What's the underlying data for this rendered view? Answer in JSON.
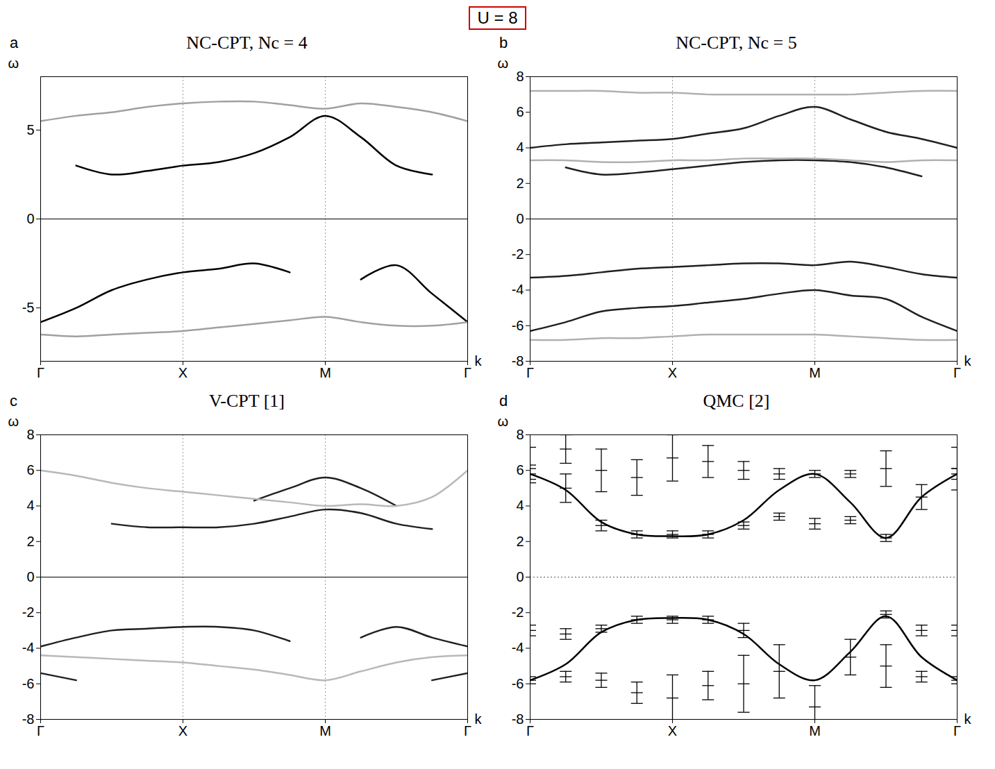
{
  "figure_title": "U = 8",
  "chart_data": [
    {
      "type": "line",
      "panel": "a",
      "title": "NC-CPT, Nc = 4",
      "xlabel": "k",
      "ylabel": "ω",
      "x": [
        0,
        0.25,
        0.5,
        0.75,
        1,
        1.25,
        1.5,
        1.75,
        2,
        2.25,
        2.5,
        2.75,
        3
      ],
      "xlim": [
        0,
        3
      ],
      "xticks": [
        {
          "value": 0,
          "label": "Γ"
        },
        {
          "value": 1,
          "label": "X"
        },
        {
          "value": 2,
          "label": "M"
        },
        {
          "value": 3,
          "label": "Γ"
        }
      ],
      "ylim": [
        -8,
        8
      ],
      "yticks": [
        -5,
        0,
        5
      ],
      "grid": true,
      "hline": {
        "value": 0,
        "line_style": "solid"
      },
      "series": [
        {
          "color": "#000000",
          "values": [
            null,
            3.0,
            2.5,
            2.7,
            3.0,
            3.2,
            3.7,
            4.6,
            5.8,
            4.6,
            3.0,
            2.5,
            null
          ]
        },
        {
          "color": "#a0a0a0",
          "values": [
            5.5,
            5.8,
            6.0,
            6.3,
            6.5,
            6.6,
            6.6,
            6.4,
            6.2,
            6.5,
            6.3,
            6.0,
            5.5
          ]
        },
        {
          "color": "#000000",
          "values": [
            -5.8,
            -5.0,
            -4.0,
            -3.4,
            -3.0,
            -2.8,
            -2.5,
            -3.0,
            null,
            -3.4,
            -2.6,
            -4.2,
            -5.8
          ]
        },
        {
          "color": "#a0a0a0",
          "values": [
            -6.5,
            -6.6,
            -6.5,
            -6.4,
            -6.3,
            -6.1,
            -5.9,
            -5.7,
            -5.5,
            -5.8,
            -6.0,
            -6.0,
            -5.8
          ]
        }
      ]
    },
    {
      "type": "line",
      "panel": "b",
      "title": "NC-CPT, Nc = 5",
      "xlabel": "k",
      "ylabel": "ω",
      "x": [
        0,
        0.25,
        0.5,
        0.75,
        1,
        1.25,
        1.5,
        1.75,
        2,
        2.25,
        2.5,
        2.75,
        3
      ],
      "xlim": [
        0,
        3
      ],
      "xticks": [
        {
          "value": 0,
          "label": "Γ"
        },
        {
          "value": 1,
          "label": "X"
        },
        {
          "value": 2,
          "label": "M"
        },
        {
          "value": 3,
          "label": "Γ"
        }
      ],
      "ylim": [
        -8,
        8
      ],
      "yticks": [
        -8,
        -6,
        -4,
        -2,
        0,
        2,
        4,
        6,
        8
      ],
      "grid": true,
      "hline": {
        "value": 0,
        "line_style": "solid"
      },
      "series": [
        {
          "color": "#202020",
          "values": [
            4.0,
            4.2,
            4.3,
            4.4,
            4.5,
            4.8,
            5.1,
            5.8,
            6.3,
            5.6,
            4.9,
            4.5,
            4.0
          ]
        },
        {
          "color": "#202020",
          "values": [
            null,
            2.9,
            2.5,
            2.6,
            2.8,
            3.0,
            3.2,
            3.3,
            3.3,
            3.2,
            2.9,
            2.4,
            null
          ]
        },
        {
          "color": "#b0b0b0",
          "values": [
            7.2,
            7.2,
            7.2,
            7.1,
            7.1,
            7.0,
            7.0,
            7.0,
            7.0,
            7.0,
            7.1,
            7.2,
            7.2
          ]
        },
        {
          "color": "#b0b0b0",
          "values": [
            3.3,
            3.3,
            3.2,
            3.2,
            3.3,
            3.3,
            3.4,
            3.4,
            3.4,
            3.3,
            3.2,
            3.3,
            3.3
          ]
        },
        {
          "color": "#202020",
          "values": [
            -3.3,
            -3.2,
            -3.0,
            -2.8,
            -2.7,
            -2.6,
            -2.5,
            -2.5,
            -2.6,
            -2.4,
            -2.7,
            -3.1,
            -3.3
          ]
        },
        {
          "color": "#202020",
          "values": [
            -6.3,
            -5.8,
            -5.2,
            -5.0,
            -4.9,
            -4.7,
            -4.5,
            -4.2,
            -4.0,
            -4.3,
            -4.5,
            -5.5,
            -6.3
          ]
        },
        {
          "color": "#b0b0b0",
          "values": [
            -6.8,
            -6.8,
            -6.7,
            -6.7,
            -6.6,
            -6.5,
            -6.5,
            -6.5,
            -6.5,
            -6.6,
            -6.7,
            -6.8,
            -6.8
          ]
        }
      ]
    },
    {
      "type": "line",
      "panel": "c",
      "title": "V-CPT [1]",
      "xlabel": "k",
      "ylabel": "ω",
      "x": [
        0,
        0.25,
        0.5,
        0.75,
        1,
        1.25,
        1.5,
        1.75,
        2,
        2.25,
        2.5,
        2.75,
        3
      ],
      "xlim": [
        0,
        3
      ],
      "xticks": [
        {
          "value": 0,
          "label": "Γ"
        },
        {
          "value": 1,
          "label": "X"
        },
        {
          "value": 2,
          "label": "M"
        },
        {
          "value": 3,
          "label": "Γ"
        }
      ],
      "ylim": [
        -8,
        8
      ],
      "yticks": [
        -8,
        -6,
        -4,
        -2,
        0,
        2,
        4,
        6,
        8
      ],
      "grid": true,
      "hline": {
        "value": 0,
        "line_style": "solid"
      },
      "series": [
        {
          "color": "#202020",
          "values": [
            null,
            null,
            3.0,
            2.8,
            2.8,
            2.8,
            3.0,
            3.4,
            3.8,
            3.6,
            3.0,
            2.7,
            null
          ]
        },
        {
          "color": "#202020",
          "values": [
            null,
            null,
            null,
            null,
            null,
            null,
            4.3,
            5.0,
            5.6,
            5.0,
            4.0,
            null,
            null
          ]
        },
        {
          "color": "#b8b8b8",
          "values": [
            6.0,
            5.7,
            5.3,
            5.0,
            4.8,
            4.6,
            4.4,
            4.2,
            4.0,
            4.1,
            4.0,
            4.5,
            6.0
          ]
        },
        {
          "color": "#202020",
          "values": [
            -3.9,
            -3.4,
            -3.0,
            -2.9,
            -2.8,
            -2.8,
            -3.0,
            -3.6,
            null,
            -3.4,
            -2.8,
            -3.4,
            -3.9
          ]
        },
        {
          "color": "#202020",
          "values": [
            -5.4,
            -5.8,
            null,
            null,
            null,
            null,
            null,
            null,
            null,
            null,
            null,
            -5.8,
            -5.4
          ]
        },
        {
          "color": "#b8b8b8",
          "values": [
            -4.4,
            -4.5,
            -4.6,
            -4.7,
            -4.8,
            -5.0,
            -5.2,
            -5.5,
            -5.8,
            -5.3,
            -4.8,
            -4.5,
            -4.4
          ]
        }
      ]
    },
    {
      "type": "errorbar",
      "panel": "d",
      "title": "QMC [2]",
      "xlabel": "k",
      "ylabel": "ω",
      "x": [
        0,
        0.25,
        0.5,
        0.75,
        1,
        1.25,
        1.5,
        1.75,
        2,
        2.25,
        2.5,
        2.75,
        3
      ],
      "xlim": [
        0,
        3
      ],
      "xticks": [
        {
          "value": 0,
          "label": "Γ"
        },
        {
          "value": 1,
          "label": "X"
        },
        {
          "value": 2,
          "label": "M"
        },
        {
          "value": 3,
          "label": "Γ"
        }
      ],
      "ylim": [
        -8,
        8
      ],
      "yticks": [
        -8,
        -6,
        -4,
        -2,
        0,
        2,
        4,
        6,
        8
      ],
      "grid": false,
      "hline": {
        "value": 0,
        "line_style": "dotted"
      },
      "series": [
        {
          "type": "line",
          "color": "#000000",
          "values": [
            5.8,
            4.9,
            3.1,
            2.4,
            2.3,
            2.4,
            3.2,
            4.9,
            5.8,
            4.2,
            2.2,
            4.5,
            5.8
          ]
        },
        {
          "type": "line",
          "color": "#000000",
          "values": [
            -5.8,
            -4.9,
            -3.1,
            -2.4,
            -2.3,
            -2.4,
            -3.2,
            -4.9,
            -5.8,
            -4.2,
            -2.2,
            -4.5,
            -5.8
          ]
        },
        {
          "type": "errorbar",
          "marker": "dash",
          "color": "#000000",
          "values": [
            5.8,
            5.0,
            2.9,
            2.4,
            2.4,
            2.4,
            2.9,
            3.4,
            5.8,
            5.8,
            2.2,
            4.5,
            5.8
          ],
          "errors": [
            0.3,
            0.8,
            0.3,
            0.2,
            0.2,
            0.2,
            0.2,
            0.2,
            0.2,
            0.2,
            0.2,
            0.7,
            0.3
          ]
        },
        {
          "type": "errorbar",
          "marker": "dash",
          "color": "#000000",
          "values": [
            6.3,
            7.2,
            6.0,
            5.6,
            6.7,
            6.5,
            6.0,
            5.8,
            3.0,
            3.2,
            6.1,
            null,
            6.1
          ],
          "errors": [
            1.0,
            0.8,
            1.2,
            1.0,
            1.3,
            0.9,
            0.5,
            0.3,
            0.3,
            0.2,
            1.0,
            null,
            1.2
          ]
        },
        {
          "type": "errorbar",
          "marker": "dash",
          "color": "#000000",
          "values": [
            -5.8,
            -5.6,
            -2.9,
            -2.4,
            -2.4,
            -2.4,
            -3.0,
            -5.3,
            -7.3,
            -4.5,
            -2.1,
            -5.6,
            -5.8
          ],
          "errors": [
            0.2,
            0.3,
            0.2,
            0.2,
            0.2,
            0.2,
            0.4,
            1.5,
            1.2,
            1.0,
            0.2,
            0.3,
            0.2
          ]
        },
        {
          "type": "errorbar",
          "marker": "dash",
          "color": "#000000",
          "values": [
            -3.0,
            -3.2,
            -5.8,
            -6.5,
            -6.8,
            -6.1,
            -6.0,
            null,
            null,
            null,
            -5.0,
            -3.0,
            -3.0
          ],
          "errors": [
            0.3,
            0.3,
            0.4,
            0.6,
            1.3,
            0.8,
            1.6,
            null,
            null,
            null,
            1.2,
            0.3,
            0.3
          ]
        }
      ]
    }
  ]
}
